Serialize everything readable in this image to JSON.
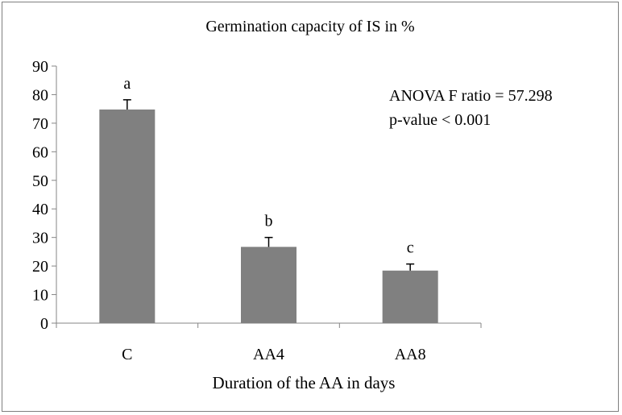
{
  "chart_data": {
    "type": "bar",
    "title": "Germination capacity of IS in %",
    "xlabel": "Duration of the AA in days",
    "ylabel": "",
    "categories": [
      "C",
      "AA4",
      "AA8"
    ],
    "values": [
      74.8,
      26.7,
      18.4
    ],
    "error_upper": [
      3.4,
      3.3,
      2.3
    ],
    "significance_letters": [
      "a",
      "b",
      "c"
    ],
    "ylim": [
      0,
      90
    ],
    "yticks": [
      "0",
      "10",
      "20",
      "30",
      "40",
      "50",
      "60",
      "70",
      "80",
      "90"
    ],
    "grid": false,
    "legend": "none",
    "annotation": {
      "line1": "ANOVA F ratio = 57.298",
      "line2": "p-value < 0.001"
    },
    "colors": {
      "bar": "#808080",
      "axis": "#868686",
      "error": "#000000"
    }
  }
}
